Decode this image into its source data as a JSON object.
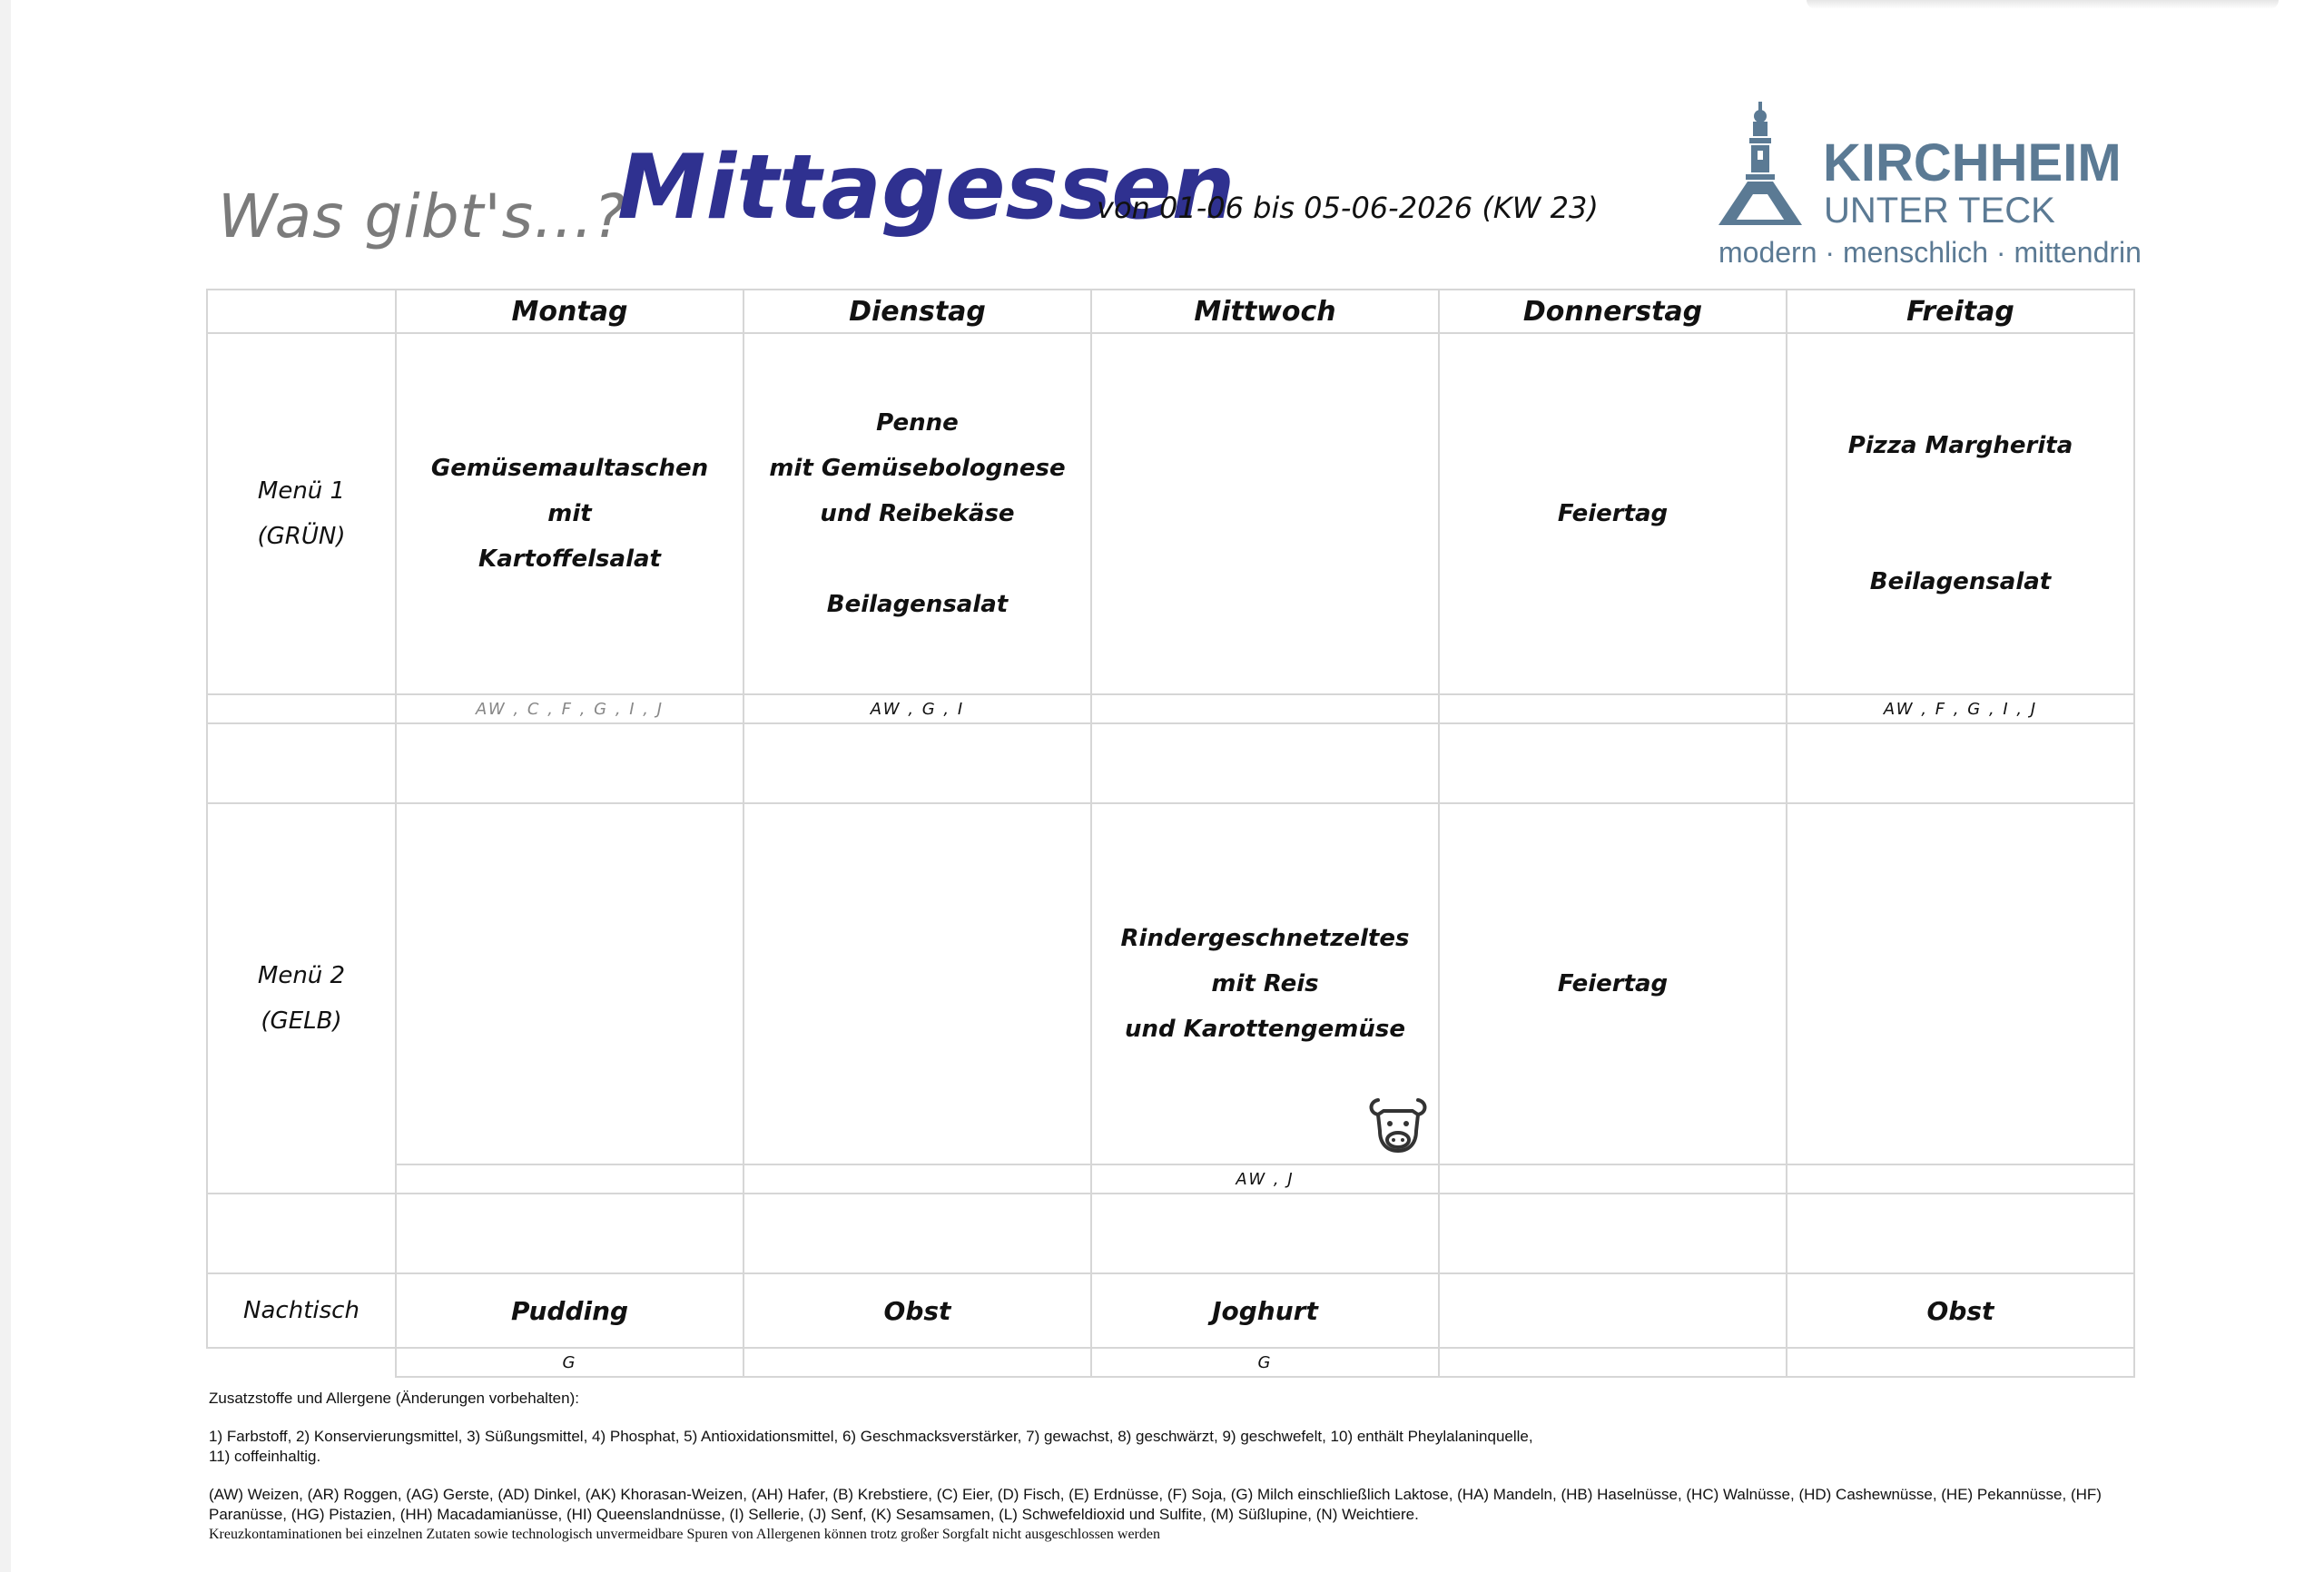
{
  "header": {
    "subtitle": "Was gibt's...?",
    "title": "Mittagessen",
    "date_range": "von 01-06 bis 05-06-2026 (KW 23)"
  },
  "logo": {
    "name": "KIRCHHEIM",
    "sub": "UNTER TECK",
    "tagline": "modern · menschlich · mittendrin",
    "color": "#5b7a94"
  },
  "days": [
    "Montag",
    "Dienstag",
    "Mittwoch",
    "Donnerstag",
    "Freitag"
  ],
  "menu1": {
    "label": "Menü 1",
    "sublabel": "(GRÜN)",
    "meals": [
      [
        "Gemüsemaultaschen",
        "mit",
        "Kartoffelsalat"
      ],
      [
        "Penne",
        "mit Gemüsebolognese",
        "und Reibekäse",
        "",
        "Beilagensalat"
      ],
      [],
      [
        "Feiertag"
      ],
      [
        "Pizza Margherita",
        "",
        "",
        "Beilagensalat"
      ]
    ],
    "allergens": [
      "AW , C , F , G , I , J",
      "AW , G , I",
      "",
      "",
      "AW , F , G , I , J"
    ]
  },
  "menu2": {
    "label": "Menü 2",
    "sublabel": "(GELB)",
    "meals": [
      [],
      [],
      [
        "Rindergeschnetzeltes",
        "mit Reis",
        "und Karottengemüse"
      ],
      [
        "Feiertag"
      ],
      []
    ],
    "allergens": [
      "",
      "",
      "AW , J",
      "",
      ""
    ],
    "icons": [
      "",
      "",
      "cow-icon",
      "",
      ""
    ]
  },
  "dessert": {
    "label": "Nachtisch",
    "items": [
      "Pudding",
      "Obst",
      "Joghurt",
      "",
      "Obst"
    ],
    "allergens": [
      "G",
      "",
      "G",
      "",
      ""
    ]
  },
  "legend": {
    "heading": "Zusatzstoffe und Allergene (Änderungen vorbehalten):",
    "additives_1": "1) Farbstoff, 2) Konservierungsmittel, 3) Süßungsmittel, 4) Phosphat, 5) Antioxidationsmittel, 6) Geschmacksverstärker, 7) gewachst, 8) geschwärzt, 9) geschwefelt, 10) enthält Pheylalaninquelle,",
    "additives_2": "11) coffeinhaltig.",
    "allergens_1": "(AW) Weizen, (AR) Roggen, (AG) Gerste, (AD) Dinkel, (AK) Khorasan-Weizen, (AH) Hafer, (B) Krebstiere, (C) Eier, (D) Fisch, (E) Erdnüsse, (F) Soja, (G) Milch einschließlich Laktose, (HA) Mandeln, (HB) Haselnüsse, (HC) Walnüsse, (HD) Cashewnüsse, (HE) Pekannüsse, (HF)",
    "allergens_2": "Paranüsse, (HG) Pistazien, (HH) Macadamianüsse, (HI) Queenslandnüsse, (I) Sellerie, (J) Senf, (K) Sesamsamen, (L) Schwefeldioxid und Sulfite, (M) Süßlupine, (N) Weichtiere.",
    "disclaimer": "Kreuzkontaminationen bei einzelnen Zutaten sowie technologisch unvermeidbare Spuren von Allergenen können trotz großer Sorgfalt nicht ausgeschlossen werden"
  }
}
